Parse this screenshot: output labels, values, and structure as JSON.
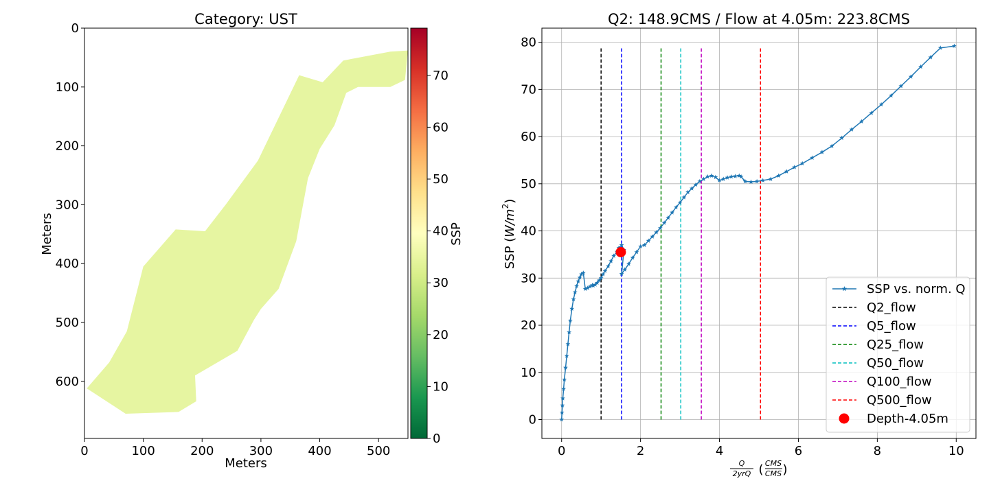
{
  "chart_data": [
    {
      "type": "heatmap",
      "title": "Category: UST",
      "xlabel": "Meters",
      "ylabel": "Meters",
      "xlim": [
        0,
        550
      ],
      "ylim": [
        697,
        0
      ],
      "xticks": [
        "0",
        "100",
        "200",
        "300",
        "400",
        "500"
      ],
      "yticks": [
        "0",
        "100",
        "200",
        "300",
        "400",
        "500",
        "600"
      ],
      "fill_value": 32,
      "fill_color": "#e6f5a1",
      "region_outline": [
        [
          4,
          612
        ],
        [
          70,
          655
        ],
        [
          160,
          652
        ],
        [
          190,
          634
        ],
        [
          188,
          590
        ],
        [
          260,
          548
        ],
        [
          288,
          496
        ],
        [
          300,
          477
        ],
        [
          330,
          443
        ],
        [
          360,
          362
        ],
        [
          380,
          255
        ],
        [
          400,
          205
        ],
        [
          425,
          165
        ],
        [
          445,
          110
        ],
        [
          465,
          100
        ],
        [
          520,
          100
        ],
        [
          545,
          88
        ],
        [
          550,
          38
        ],
        [
          520,
          40
        ],
        [
          440,
          55
        ],
        [
          405,
          92
        ],
        [
          365,
          80
        ],
        [
          295,
          225
        ],
        [
          240,
          300
        ],
        [
          205,
          345
        ],
        [
          155,
          342
        ],
        [
          100,
          405
        ],
        [
          72,
          515
        ],
        [
          42,
          568
        ]
      ],
      "colorbar": {
        "label": "SSP",
        "min": 0,
        "max": 79.1,
        "ticks": [
          "0",
          "10",
          "20",
          "30",
          "40",
          "50",
          "60",
          "70"
        ],
        "colormap": "RdYlGn_r"
      }
    },
    {
      "type": "line",
      "title": "Q2: 148.9CMS / Flow at 4.05m: 223.8CMS",
      "xlabel_fraction": {
        "numerator": "Q",
        "denominator": "2yrQ"
      },
      "xlabel_unit_fraction": {
        "numerator": "CMS",
        "denominator": "CMS"
      },
      "ylabel": "SSP (W/m²)",
      "ylabel_parts": {
        "prefix": "SSP (",
        "main": "W/m",
        "sup": "2",
        "suffix": ")"
      },
      "xlim": [
        -0.5,
        10.5
      ],
      "ylim": [
        -4,
        83
      ],
      "xticks": [
        0,
        2,
        4,
        6,
        8,
        10
      ],
      "yticks": [
        0,
        10,
        20,
        30,
        40,
        50,
        60,
        70,
        80
      ],
      "grid": true,
      "legend_position": "lower-right",
      "series": [
        {
          "name": "SSP vs. norm. Q",
          "color": "#1f77b4",
          "marker": "star",
          "x": [
            0,
            0.01,
            0.02,
            0.03,
            0.05,
            0.07,
            0.1,
            0.13,
            0.16,
            0.19,
            0.22,
            0.26,
            0.3,
            0.34,
            0.38,
            0.42,
            0.46,
            0.5,
            0.55,
            0.6,
            0.66,
            0.72,
            0.78,
            0.8,
            0.85,
            0.9,
            0.95,
            1.0,
            1.05,
            1.1,
            1.18,
            1.25,
            1.32,
            1.4,
            1.45,
            1.52,
            1.58,
            1.52,
            1.6,
            1.7,
            1.8,
            1.9,
            2.0,
            2.1,
            2.2,
            2.3,
            2.4,
            2.5,
            2.6,
            2.7,
            2.8,
            2.9,
            3.0,
            3.1,
            3.2,
            3.3,
            3.4,
            3.5,
            3.6,
            3.7,
            3.8,
            3.9,
            4.0,
            4.1,
            4.2,
            4.3,
            4.4,
            4.5,
            4.55,
            4.65,
            4.8,
            4.95,
            5.1,
            5.3,
            5.5,
            5.7,
            5.9,
            6.1,
            6.35,
            6.6,
            6.85,
            7.1,
            7.35,
            7.6,
            7.85,
            8.1,
            8.35,
            8.6,
            8.85,
            9.1,
            9.35,
            9.6,
            9.95
          ],
          "y": [
            0,
            1.5,
            3,
            4.5,
            6.5,
            8.5,
            11,
            13.5,
            16,
            18.5,
            21,
            23.5,
            25.5,
            27,
            28.3,
            29.3,
            30.1,
            30.8,
            31.1,
            27.7,
            27.9,
            28.2,
            28.5,
            28.4,
            28.6,
            29.0,
            29.5,
            30,
            30.8,
            31.5,
            32.5,
            33.6,
            34.7,
            35.6,
            36.4,
            37.0,
            36.0,
            30.9,
            31.8,
            33.0,
            34.3,
            35.5,
            36.7,
            37.0,
            37.9,
            38.8,
            39.7,
            40.6,
            41.7,
            42.8,
            43.9,
            45.0,
            46.0,
            47.1,
            48.2,
            49.0,
            49.8,
            50.5,
            51.0,
            51.5,
            51.7,
            51.4,
            50.7,
            51.0,
            51.3,
            51.5,
            51.6,
            51.7,
            51.5,
            50.5,
            50.4,
            50.5,
            50.7,
            51.0,
            51.7,
            52.6,
            53.5,
            54.3,
            55.5,
            56.7,
            58.0,
            59.7,
            61.5,
            63.2,
            65.0,
            66.8,
            68.7,
            70.7,
            72.7,
            74.8,
            76.8,
            78.8,
            79.2
          ]
        },
        {
          "name": "Q2_flow",
          "color": "#000000",
          "dashed": true,
          "x": 1.0,
          "y_range": [
            0,
            79
          ]
        },
        {
          "name": "Q5_flow",
          "color": "#0000ff",
          "dashed": true,
          "x": 1.52,
          "y_range": [
            0,
            79
          ]
        },
        {
          "name": "Q25_flow",
          "color": "#008000",
          "dashed": true,
          "x": 2.52,
          "y_range": [
            0,
            79
          ]
        },
        {
          "name": "Q50_flow",
          "color": "#00bfbf",
          "dashed": true,
          "x": 3.02,
          "y_range": [
            0,
            79
          ]
        },
        {
          "name": "Q100_flow",
          "color": "#bf00bf",
          "dashed": true,
          "x": 3.54,
          "y_range": [
            0,
            79
          ]
        },
        {
          "name": "Q500_flow",
          "color": "#ff0000",
          "dashed": true,
          "x": 5.04,
          "y_range": [
            0,
            79
          ]
        },
        {
          "name": "Depth-4.05m",
          "color": "#ff0000",
          "type": "scatter",
          "x": [
            1.5
          ],
          "y": [
            35.5
          ]
        }
      ]
    }
  ]
}
